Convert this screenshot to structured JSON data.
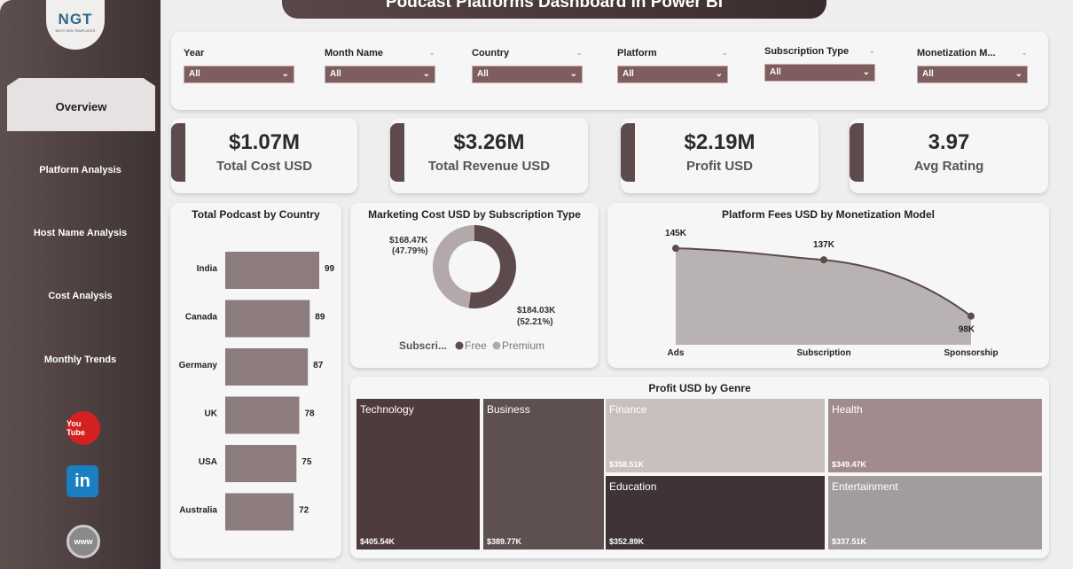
{
  "title": "Podcast Platforms Dashboard in Power BI",
  "logo": {
    "text": "NGT",
    "sub": "NEXT GEN TEMPLATES"
  },
  "nav": [
    {
      "label": "Overview"
    },
    {
      "label": "Platform Analysis"
    },
    {
      "label": "Host Name Analysis"
    },
    {
      "label": "Cost Analysis"
    },
    {
      "label": "Monthly Trends"
    }
  ],
  "social": {
    "youtube": "You Tube",
    "linkedin": "in",
    "web": "www"
  },
  "filters": [
    {
      "label": "Year",
      "value": "All"
    },
    {
      "label": "Month Name",
      "value": "All"
    },
    {
      "label": "Country",
      "value": "All"
    },
    {
      "label": "Platform",
      "value": "All"
    },
    {
      "label": "Subscription Type",
      "value": "All"
    },
    {
      "label": "Monetization M...",
      "value": "All"
    }
  ],
  "kpis": [
    {
      "value": "$1.07M",
      "label": "Total Cost USD"
    },
    {
      "value": "$3.26M",
      "label": "Total Revenue USD"
    },
    {
      "value": "$2.19M",
      "label": "Profit USD"
    },
    {
      "value": "3.97",
      "label": "Avg Rating"
    }
  ],
  "colors": {
    "dark": "#5c4a4c",
    "filter": "#7e5d5e",
    "bar": "#8c7c7d",
    "light": "#b3a9aa"
  },
  "chart_data": [
    {
      "type": "bar",
      "title": "Total Podcast by Country",
      "categories": [
        "India",
        "Canada",
        "Germany",
        "UK",
        "USA",
        "Australia"
      ],
      "values": [
        99,
        89,
        87,
        78,
        75,
        72
      ],
      "labels": [
        "99",
        "89",
        "87",
        "78",
        "75",
        "72"
      ]
    },
    {
      "type": "pie",
      "title": "Marketing Cost USD by Subscription Type",
      "legend_title": "Subscri...",
      "categories": [
        "Free",
        "Premium"
      ],
      "values": [
        184.03,
        168.47
      ],
      "labels": [
        "$184.03K (52.21%)",
        "$168.47K (47.79%)"
      ],
      "label_lines": [
        [
          "$184.03K",
          "(52.21%)"
        ],
        [
          "$168.47K",
          "(47.79%)"
        ]
      ]
    },
    {
      "type": "area",
      "title": "Platform Fees USD by Monetization Model",
      "categories": [
        "Ads",
        "Subscription",
        "Sponsorship"
      ],
      "values": [
        145,
        137,
        98
      ],
      "labels": [
        "145K",
        "137K",
        "98K"
      ]
    },
    {
      "type": "treemap",
      "title": "Profit USD by Genre",
      "categories": [
        "Technology",
        "Business",
        "Finance",
        "Health",
        "Education",
        "Entertainment"
      ],
      "values": [
        405.54,
        389.77,
        358.51,
        349.47,
        352.89,
        337.51
      ],
      "labels": [
        "$405.54K",
        "$389.77K",
        "$358.51K",
        "$349.47K",
        "$352.89K",
        "$337.51K"
      ]
    }
  ]
}
